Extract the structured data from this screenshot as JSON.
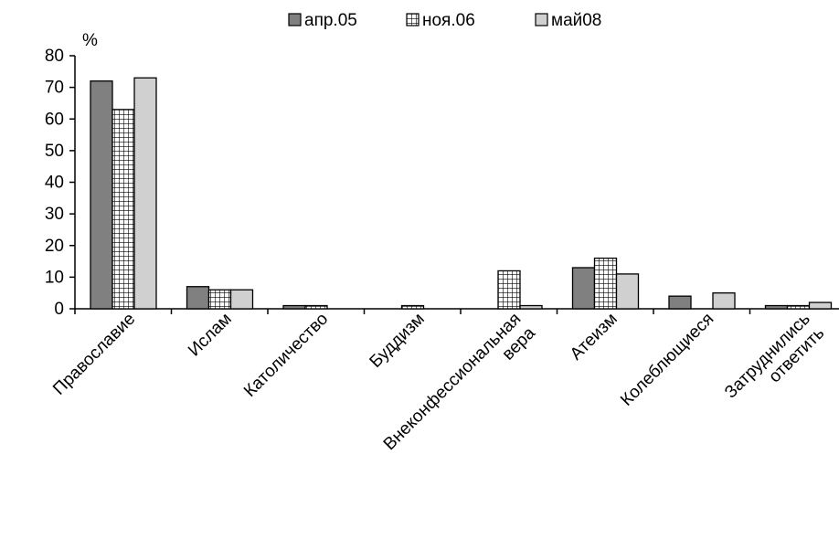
{
  "chart_data": {
    "type": "bar",
    "ylabel": "%",
    "ylim": [
      0,
      80
    ],
    "yticks": [
      0,
      10,
      20,
      30,
      40,
      50,
      60,
      70,
      80
    ],
    "grid": false,
    "legend_position": "top",
    "categories": [
      [
        "Православие"
      ],
      [
        "Ислам"
      ],
      [
        "Католичество"
      ],
      [
        "Буддизм"
      ],
      [
        "Внеконфессиональная",
        "вера"
      ],
      [
        "Атеизм"
      ],
      [
        "Колеблющиеся"
      ],
      [
        "Затруднились",
        "ответить"
      ]
    ],
    "series": [
      {
        "name": "апр.05",
        "values": [
          72,
          7,
          1,
          0,
          0,
          13,
          4,
          1
        ],
        "color": "#808080",
        "pattern": "solid"
      },
      {
        "name": "ноя.06",
        "values": [
          63,
          6,
          1,
          1,
          12,
          16,
          0,
          1
        ],
        "color": "#ffffff",
        "pattern": "grid"
      },
      {
        "name": "май08",
        "values": [
          73,
          6,
          0,
          0,
          1,
          11,
          5,
          2
        ],
        "color": "#d0d0d0",
        "pattern": "solid"
      }
    ]
  }
}
